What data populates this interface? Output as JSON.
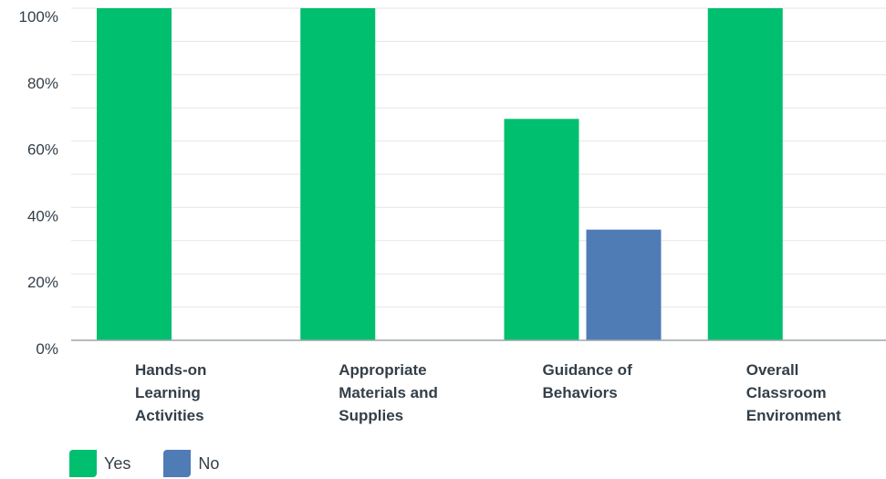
{
  "chart_data": {
    "type": "bar",
    "categories": [
      [
        "Hands-on",
        "Learning",
        "Activities"
      ],
      [
        "Appropriate",
        "Materials and",
        "Supplies"
      ],
      [
        "Guidance of",
        "Behaviors"
      ],
      [
        "Overall",
        "Classroom",
        "Environment"
      ]
    ],
    "series": [
      {
        "name": "Yes",
        "color": "#00bf6f",
        "values": [
          100,
          100,
          66.67,
          100
        ]
      },
      {
        "name": "No",
        "color": "#507cb6",
        "values": [
          0,
          0,
          33.33,
          0
        ]
      }
    ],
    "ylim": [
      0,
      100
    ],
    "yticks": [
      "0%",
      "20%",
      "40%",
      "60%",
      "80%",
      "100%"
    ],
    "grid": true,
    "legend_position": "bottom-left"
  }
}
